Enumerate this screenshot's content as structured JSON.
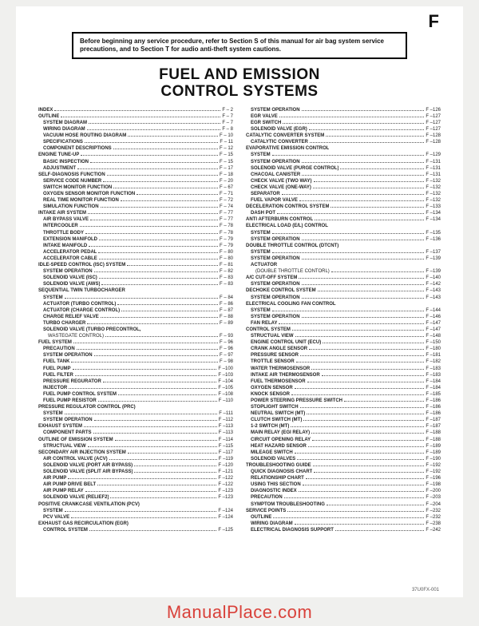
{
  "section_letter": "F",
  "notice": "Before beginning any service procedure, refer to Section S of this manual for air bag system service precautions, and to Section T for audio anti-theft system cautions.",
  "title_line1": "FUEL AND EMISSION",
  "title_line2": "CONTROL SYSTEMS",
  "footer_code": "37U0FX-001",
  "watermark": "ManualPlace.com",
  "left": [
    {
      "l": 0,
      "t": "INDEX",
      "p": "F –  2"
    },
    {
      "l": 0,
      "t": "OUTLINE",
      "p": "F –  7"
    },
    {
      "l": 1,
      "t": "SYSTEM DIAGRAM",
      "p": "F –  7"
    },
    {
      "l": 1,
      "t": "WIRING DIAGRAM",
      "p": "F –  8"
    },
    {
      "l": 1,
      "t": "VACUUM HOSE ROUTING DIAGRAM",
      "p": "F – 10"
    },
    {
      "l": 1,
      "t": "SPECIFICATIONS",
      "p": "F – 11"
    },
    {
      "l": 1,
      "t": "COMPONENT DESCRIPTIONS",
      "p": "F – 12"
    },
    {
      "l": 0,
      "t": "ENGINE TUNE-UP",
      "p": "F – 15"
    },
    {
      "l": 1,
      "t": "BASIC INSPECTION",
      "p": "F – 15"
    },
    {
      "l": 1,
      "t": "ADJUSTMENT",
      "p": "F – 17"
    },
    {
      "l": 0,
      "t": "SELF-DIAGNOSIS FUNCTION",
      "p": "F – 18"
    },
    {
      "l": 1,
      "t": "SERVICE CODE NUMBER",
      "p": "F – 20"
    },
    {
      "l": 1,
      "t": "SWITCH MONITOR FUNCTION",
      "p": "F – 67"
    },
    {
      "l": 1,
      "t": "OXYGEN SENSOR MONITOR FUNCTION",
      "p": "F – 71"
    },
    {
      "l": 1,
      "t": "REAL TIME MONITOR FUNCTION",
      "p": "F – 72"
    },
    {
      "l": 1,
      "t": "SIMULATION FUNCTION",
      "p": "F – 74"
    },
    {
      "l": 0,
      "t": "INTAKE AIR SYSTEM",
      "p": "F – 77"
    },
    {
      "l": 1,
      "t": "AIR BYPASS VALVE",
      "p": "F – 77"
    },
    {
      "l": 1,
      "t": "INTERCOOLER",
      "p": "F – 78"
    },
    {
      "l": 1,
      "t": "THROTTLE BODY",
      "p": "F – 78"
    },
    {
      "l": 1,
      "t": "EXTENSION MANIFOLD",
      "p": "F – 79"
    },
    {
      "l": 1,
      "t": "INTAKE MANIFOLD",
      "p": "F – 79"
    },
    {
      "l": 1,
      "t": "ACCELERATOR PEDAL",
      "p": "F – 80"
    },
    {
      "l": 1,
      "t": "ACCELERATOR CABLE",
      "p": "F – 80"
    },
    {
      "l": 0,
      "t": "IDLE-SPEED CONTROL (ISC) SYSTEM",
      "p": "F – 81"
    },
    {
      "l": 1,
      "t": "SYSTEM OPERATION",
      "p": "F – 82"
    },
    {
      "l": 1,
      "t": "SOLENOID VALVE (ISC)",
      "p": "F – 83"
    },
    {
      "l": 1,
      "t": "SOLENOID VALVE (AWS)",
      "p": "F – 83"
    },
    {
      "l": 0,
      "t": "SEQUENTIAL TWIN TURBOCHARGER",
      "p": ""
    },
    {
      "l": 1,
      "t": "SYSTEM",
      "p": "F – 84"
    },
    {
      "l": 1,
      "t": "ACTUATOR (TURBO CONTROL)",
      "p": "F – 86"
    },
    {
      "l": 1,
      "t": "ACTUATOR (CHARGE CONTROL)",
      "p": "F – 87"
    },
    {
      "l": 1,
      "t": "CHARGE RELIEF VALVE",
      "p": "F – 88"
    },
    {
      "l": 1,
      "t": "TURBO CHARGER",
      "p": "F – 89"
    },
    {
      "l": 1,
      "t": "SOLENOID VALVE (TURBO PRECONTROL,",
      "p": ""
    },
    {
      "l": 2,
      "t": "WASTEGATE CONTROL)",
      "p": "F – 93"
    },
    {
      "l": 0,
      "t": "FUEL SYSTEM",
      "p": "F – 96"
    },
    {
      "l": 1,
      "t": "PRECAUTION",
      "p": "F – 96"
    },
    {
      "l": 1,
      "t": "SYSTEM OPERATION",
      "p": "F – 97"
    },
    {
      "l": 1,
      "t": "FUEL TANK",
      "p": "F – 98"
    },
    {
      "l": 1,
      "t": "FUEL PUMP",
      "p": "F –100"
    },
    {
      "l": 1,
      "t": "FUEL FILTER",
      "p": "F –103"
    },
    {
      "l": 1,
      "t": "PRESSURE REGURATOR",
      "p": "F –104"
    },
    {
      "l": 1,
      "t": "INJECTOR",
      "p": "F –105"
    },
    {
      "l": 1,
      "t": "FUEL PUMP CONTROL SYSTEM",
      "p": "F –108"
    },
    {
      "l": 1,
      "t": "FUEL PUMP RESISTOR",
      "p": "F –110"
    },
    {
      "l": 0,
      "t": "PRESSURE REGULATOR CONTROL (PRC)",
      "p": ""
    },
    {
      "l": 1,
      "t": "SYSTEM",
      "p": "F –111"
    },
    {
      "l": 1,
      "t": "SYSTEM OPERATION",
      "p": "F –112"
    },
    {
      "l": 0,
      "t": "EXHAUST SYSTEM",
      "p": "F –113"
    },
    {
      "l": 1,
      "t": "COMPONENT PARTS",
      "p": "F –113"
    },
    {
      "l": 0,
      "t": "OUTLINE OF EMISSION SYSTEM",
      "p": "F –114"
    },
    {
      "l": 1,
      "t": "STRUCTUAL VIEW",
      "p": "F –115"
    },
    {
      "l": 0,
      "t": "SECONDARY AIR INJECTION SYSTEM",
      "p": "F –117"
    },
    {
      "l": 1,
      "t": "AIR CONTROL VALVE (ACV)",
      "p": "F –119"
    },
    {
      "l": 1,
      "t": "SOLENOID VALVE (PORT AIR BYPASS)",
      "p": "F –120"
    },
    {
      "l": 1,
      "t": "SOLENOID VALVE (SPLIT AIR BYPASS)",
      "p": "F –121"
    },
    {
      "l": 1,
      "t": "AIR PUMP",
      "p": "F –122"
    },
    {
      "l": 1,
      "t": "AIR PUMP DRIVE BELT",
      "p": "F –122"
    },
    {
      "l": 1,
      "t": "AIR PUMP RELAY",
      "p": "F –123"
    },
    {
      "l": 1,
      "t": "SOLENOID VALVE (RELIEF2)",
      "p": "F –123"
    },
    {
      "l": 0,
      "t": "POSITIVE CRANKCASE VENTILATION (PCV)",
      "p": ""
    },
    {
      "l": 1,
      "t": "SYSTEM",
      "p": "F –124"
    },
    {
      "l": 1,
      "t": "PCV VALVE",
      "p": "F –124"
    },
    {
      "l": 0,
      "t": "EXHAUST GAS RECIRCULATION (EGR)",
      "p": ""
    },
    {
      "l": 1,
      "t": "CONTROL SYSTEM",
      "p": "F –125"
    }
  ],
  "right": [
    {
      "l": 1,
      "t": "SYSTEM OPERATION",
      "p": "F –126"
    },
    {
      "l": 1,
      "t": "EGR VALVE",
      "p": "F –127"
    },
    {
      "l": 1,
      "t": "EGR SWITCH",
      "p": "F –127"
    },
    {
      "l": 1,
      "t": "SOLENOID VALVE (EGR)",
      "p": "F –127"
    },
    {
      "l": 0,
      "t": "CATALYTIC CONVERTER SYSTEM",
      "p": "F –128"
    },
    {
      "l": 1,
      "t": "CATALYTIC CONVERTER",
      "p": "F –128"
    },
    {
      "l": 0,
      "t": "EVAPORATIVE EMISSION CONTROL",
      "p": ""
    },
    {
      "l": 1,
      "t": "SYSTEM",
      "p": "F –129"
    },
    {
      "l": 1,
      "t": "SYSTEM OPERATION",
      "p": "F –131"
    },
    {
      "l": 1,
      "t": "SOLENOID VALVE (PURGE CONTROL)",
      "p": "F –131"
    },
    {
      "l": 1,
      "t": "CHACOAL CANISTER",
      "p": "F –131"
    },
    {
      "l": 1,
      "t": "CHECK VALVE (TWO WAY)",
      "p": "F –132"
    },
    {
      "l": 1,
      "t": "CHECK VALVE (ONE-WAY)",
      "p": "F –132"
    },
    {
      "l": 1,
      "t": "SEPARATOR",
      "p": "F –132"
    },
    {
      "l": 1,
      "t": "FUEL VAPOR VALVE",
      "p": "F –132"
    },
    {
      "l": 0,
      "t": "DECELERATION CONTROL SYSTEM",
      "p": "F –133"
    },
    {
      "l": 1,
      "t": "DASH POT",
      "p": "F –134"
    },
    {
      "l": 0,
      "t": "ANTI AFTERBURN CONTROL",
      "p": "F –134"
    },
    {
      "l": 0,
      "t": "ELECTRICAL LOAD (E/L) CONTROL",
      "p": ""
    },
    {
      "l": 1,
      "t": "SYSTEM",
      "p": "F –135"
    },
    {
      "l": 1,
      "t": "SYSTEM OPERATION",
      "p": "F –136"
    },
    {
      "l": 0,
      "t": "DOUBLE THROTTLE CONTROL (DTCNT)",
      "p": ""
    },
    {
      "l": 1,
      "t": "SYSTEM",
      "p": "F –137"
    },
    {
      "l": 1,
      "t": "SYSTEM OPERATION",
      "p": "F –139"
    },
    {
      "l": 1,
      "t": "ACTUATOR",
      "p": ""
    },
    {
      "l": 2,
      "t": "(DOUBLE THROTTLE CONTORL)",
      "p": "F –139"
    },
    {
      "l": 0,
      "t": "A/C CUT-OFF SYSTEM",
      "p": "F –140"
    },
    {
      "l": 1,
      "t": "SYSTEM OPERATION",
      "p": "F –142"
    },
    {
      "l": 0,
      "t": "DECHOKE CONTROL SYSTEM",
      "p": "F –143"
    },
    {
      "l": 1,
      "t": "SYSTEM OPERATION",
      "p": "F –143"
    },
    {
      "l": 0,
      "t": "ELECTRICAL COOLING FAN CONTROL",
      "p": ""
    },
    {
      "l": 1,
      "t": "SYSTEM",
      "p": "F –144"
    },
    {
      "l": 1,
      "t": "SYSTEM OPERATION",
      "p": "F –146"
    },
    {
      "l": 1,
      "t": "FAN RELAY",
      "p": "F –147"
    },
    {
      "l": 0,
      "t": "CONTROL SYSTEM",
      "p": "F –147"
    },
    {
      "l": 1,
      "t": "STRUCTUAL VIEW",
      "p": "F –148"
    },
    {
      "l": 1,
      "t": "ENGINE CONTROL UNIT (ECU)",
      "p": "F –150"
    },
    {
      "l": 1,
      "t": "CRANK ANGLE SENSOR",
      "p": "F –180"
    },
    {
      "l": 1,
      "t": "PRESSURE SENSOR",
      "p": "F –181"
    },
    {
      "l": 1,
      "t": "TROTTLE SENSOR",
      "p": "F –182"
    },
    {
      "l": 1,
      "t": "WATER THERMOSENSOR",
      "p": "F –183"
    },
    {
      "l": 1,
      "t": "INTAKE AIR THERMOSENSOR",
      "p": "F –183"
    },
    {
      "l": 1,
      "t": "FUEL THERMOSENSOR",
      "p": "F –184"
    },
    {
      "l": 1,
      "t": "OXYGEN SENSOR",
      "p": "F –184"
    },
    {
      "l": 1,
      "t": "KNOCK SENSOR",
      "p": "F –185"
    },
    {
      "l": 1,
      "t": "POWER STEERING PRESSURE SWITCH",
      "p": "F –186"
    },
    {
      "l": 1,
      "t": "STOPLIGHT SWITCH",
      "p": "F –186"
    },
    {
      "l": 1,
      "t": "NEUTRAL SWITCH (MT)",
      "p": "F –186"
    },
    {
      "l": 1,
      "t": "CLUTCH SWITCH (MT)",
      "p": "F –187"
    },
    {
      "l": 1,
      "t": "1-2 SWITCH (MT)",
      "p": "F –187"
    },
    {
      "l": 1,
      "t": "MAIN RELAY (EGI RELAY)",
      "p": "F –188"
    },
    {
      "l": 1,
      "t": "CIRCUIT OPENING RELAY",
      "p": "F –188"
    },
    {
      "l": 1,
      "t": "HEAT HAZARD SENSOR",
      "p": "F –189"
    },
    {
      "l": 1,
      "t": "MILEAGE SWITCH",
      "p": "F –189"
    },
    {
      "l": 1,
      "t": "SOLENOID VALVES",
      "p": "F –190"
    },
    {
      "l": 0,
      "t": "TROUBLESHOOTING GUIDE",
      "p": "F –192"
    },
    {
      "l": 1,
      "t": "QUICK DIAGNOSIS CHART",
      "p": "F –192"
    },
    {
      "l": 1,
      "t": "RELATIONSHIP CHART",
      "p": "F –196"
    },
    {
      "l": 1,
      "t": "USING THIS SECTION",
      "p": "F –198"
    },
    {
      "l": 1,
      "t": "DIAGNOSTIC INDEX",
      "p": "F –200"
    },
    {
      "l": 1,
      "t": "PRECAUTION",
      "p": "F –203"
    },
    {
      "l": 1,
      "t": "SYMPTOM TROUBLESHOOTING",
      "p": "F –204"
    },
    {
      "l": 0,
      "t": "SERVICE POINTS",
      "p": "F –232"
    },
    {
      "l": 1,
      "t": "OUTLINE",
      "p": "F –232"
    },
    {
      "l": 1,
      "t": "WIRING DIAGRAM",
      "p": "F –238"
    },
    {
      "l": 1,
      "t": "ELECTRICAL DIAGNOSIS SUPPORT",
      "p": "F –242"
    }
  ]
}
